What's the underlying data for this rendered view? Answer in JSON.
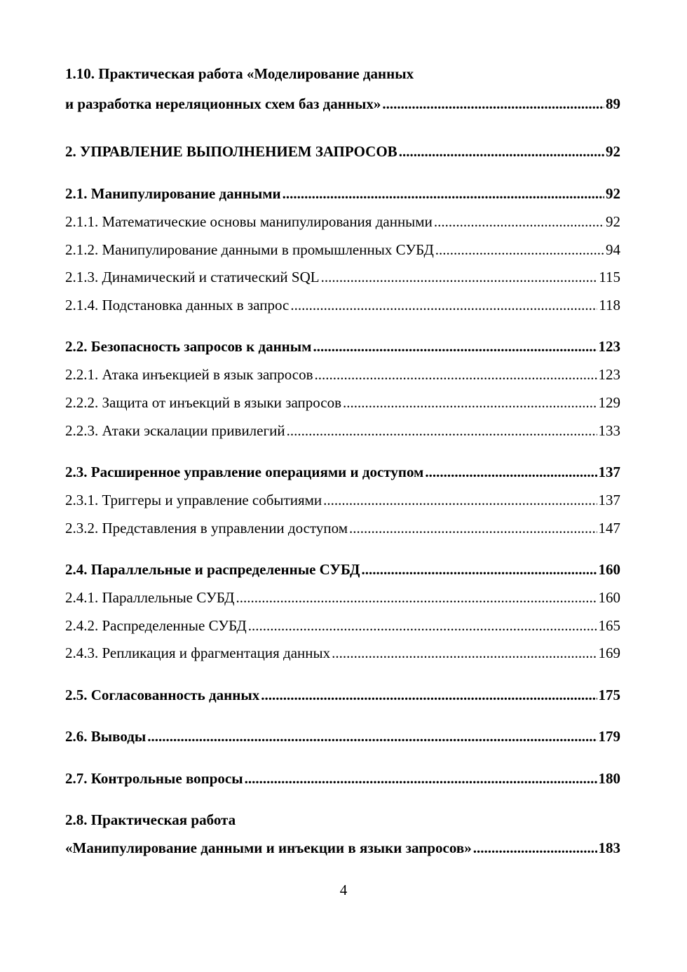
{
  "toc": [
    {
      "text": "1.10. Практическая работа «Моделирование данных",
      "page": "",
      "bold": true
    },
    {
      "text": "и разработка нереляционных схем баз данных»",
      "page": "89",
      "bold": true
    },
    {
      "text": "2. УПРАВЛЕНИЕ ВЫПОЛНЕНИЕМ ЗАПРОСОВ",
      "page": "92",
      "bold": true
    },
    {
      "text": "2.1. Манипулирование данными",
      "page": "92",
      "bold": true
    },
    {
      "text": "2.1.1. Математические основы манипулирования данными",
      "page": "92",
      "bold": false
    },
    {
      "text": "2.1.2. Манипулирование данными в промышленных СУБД",
      "page": "94",
      "bold": false
    },
    {
      "text": "2.1.3. Динамический и статический SQL",
      "page": "115",
      "bold": false
    },
    {
      "text": "2.1.4. Подстановка данных в запрос",
      "page": "118",
      "bold": false
    },
    {
      "text": "2.2. Безопасность запросов к данным",
      "page": "123",
      "bold": true
    },
    {
      "text": "2.2.1. Атака инъекцией в язык запросов",
      "page": "123",
      "bold": false
    },
    {
      "text": "2.2.2. Защита от инъекций в языки запросов",
      "page": "129",
      "bold": false
    },
    {
      "text": "2.2.3. Атаки эскалации привилегий",
      "page": "133",
      "bold": false
    },
    {
      "text": "2.3. Расширенное управление операциями и доступом",
      "page": "137",
      "bold": true
    },
    {
      "text": "2.3.1. Триггеры и управление событиями",
      "page": "137",
      "bold": false
    },
    {
      "text": "2.3.2. Представления в управлении доступом",
      "page": "147",
      "bold": false
    },
    {
      "text": "2.4. Параллельные и распределенные СУБД",
      "page": "160",
      "bold": true
    },
    {
      "text": "2.4.1. Параллельные СУБД",
      "page": "160",
      "bold": false
    },
    {
      "text": "2.4.2. Распределенные СУБД",
      "page": "165",
      "bold": false
    },
    {
      "text": "2.4.3. Репликация и фрагментация данных",
      "page": "169",
      "bold": false
    },
    {
      "text": "2.5. Согласованность данных",
      "page": "175",
      "bold": true
    },
    {
      "text": "2.6. Выводы",
      "page": "179",
      "bold": true
    },
    {
      "text": "2.7. Контрольные вопросы",
      "page": "180",
      "bold": true
    },
    {
      "text": "2.8. Практическая работа",
      "page": "",
      "bold": true
    },
    {
      "text": "«Манипулирование данными и инъекции в языки запросов»",
      "page": "183",
      "bold": true
    }
  ],
  "page_number": "4"
}
